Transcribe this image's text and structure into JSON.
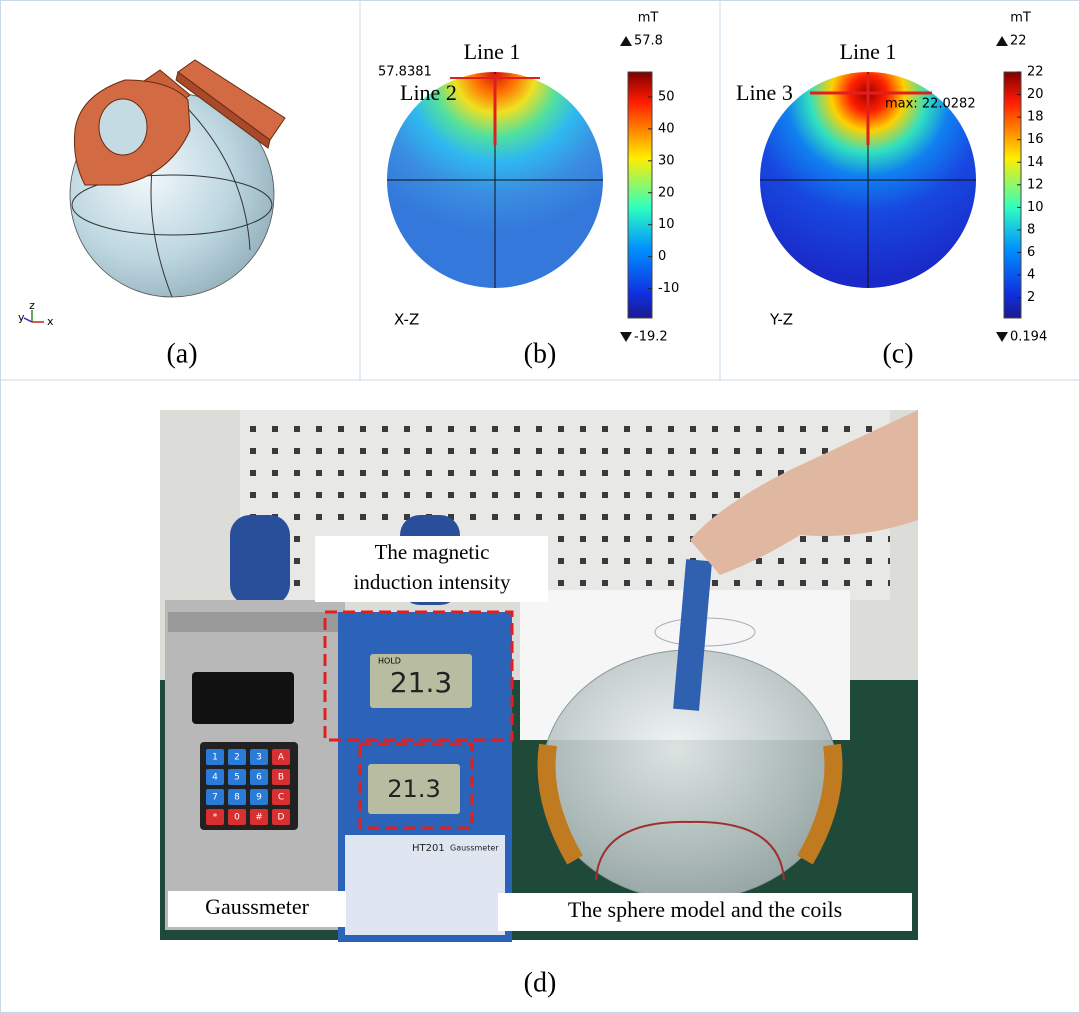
{
  "panels": [
    {
      "caption": "(a)",
      "axes": [
        "y",
        "z",
        "x"
      ]
    },
    {
      "caption": "(b)",
      "plane": "X-Z",
      "lines": [
        "Line 1",
        "Line 2"
      ],
      "annotation": "57.8381",
      "colorbar": {
        "unit": "mT",
        "max": 57.8,
        "min": -19.2,
        "ticks": [
          50,
          40,
          30,
          20,
          10,
          0,
          -10
        ]
      }
    },
    {
      "caption": "(c)",
      "plane": "Y-Z",
      "lines": [
        "Line 1",
        "Line 3"
      ],
      "annotation": "max: 22.0282",
      "colorbar": {
        "unit": "mT",
        "max": 22,
        "min": 0.194,
        "ticks": [
          22,
          20,
          18,
          16,
          14,
          12,
          10,
          8,
          6,
          4,
          2
        ]
      }
    },
    {
      "caption": "(d)",
      "labels": {
        "meter": [
          "The magnetic",
          "induction intensity"
        ],
        "gaussmeter": "Gaussmeter",
        "sphere": "The sphere model and the coils"
      },
      "photo": {
        "hold": "HOLD",
        "reading_top": "21.3",
        "reading_bottom": "21.3",
        "model": "HT201",
        "brand": "Gaussmeter",
        "keypad": [
          "1",
          "2",
          "3",
          "A",
          "4",
          "5",
          "6",
          "B",
          "7",
          "8",
          "9",
          "C",
          "*",
          "0",
          "#",
          "D"
        ]
      }
    }
  ]
}
